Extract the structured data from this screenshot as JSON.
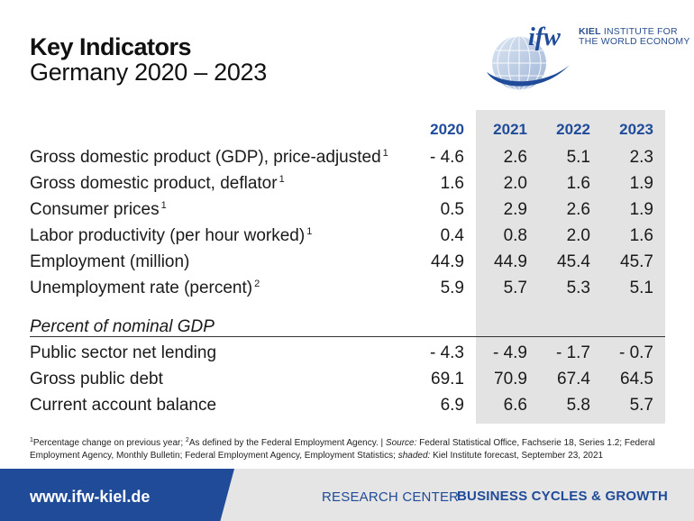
{
  "header": {
    "title": "Key Indicators",
    "subtitle": "Germany 2020 – 2023"
  },
  "logo": {
    "mark": "ifw",
    "line1_bold": "KIEL",
    "line1_rest": "INSTITUTE FOR",
    "line2": "THE WORLD ECONOMY"
  },
  "table": {
    "years": [
      "2020",
      "2021",
      "2022",
      "2023"
    ],
    "rows": [
      {
        "label": "Gross domestic product (GDP), price-adjusted",
        "sup": "1",
        "values": [
          "- 4.6",
          "2.6",
          "5.1",
          "2.3"
        ]
      },
      {
        "label": "Gross domestic product, deflator",
        "sup": "1",
        "values": [
          "1.6",
          "2.0",
          "1.6",
          "1.9"
        ]
      },
      {
        "label": "Consumer prices",
        "sup": "1",
        "values": [
          "0.5",
          "2.9",
          "2.6",
          "1.9"
        ]
      },
      {
        "label": "Labor productivity (per hour worked)",
        "sup": "1",
        "values": [
          "0.4",
          "0.8",
          "2.0",
          "1.6"
        ]
      },
      {
        "label": "Employment (million)",
        "sup": "",
        "values": [
          "44.9",
          "44.9",
          "45.4",
          "45.7"
        ]
      },
      {
        "label": "Unemployment rate (percent)",
        "sup": "2",
        "values": [
          "5.9",
          "5.7",
          "5.3",
          "5.1"
        ]
      }
    ],
    "section_label": "Percent of nominal GDP",
    "rows2": [
      {
        "label": "Public sector net lending",
        "values": [
          "- 4.3",
          "- 4.9",
          "- 1.7",
          "- 0.7"
        ]
      },
      {
        "label": "Gross public debt",
        "values": [
          "69.1",
          "70.9",
          "67.4",
          "64.5"
        ]
      },
      {
        "label": "Current account balance",
        "values": [
          "6.9",
          "6.6",
          "5.8",
          "5.7"
        ]
      }
    ]
  },
  "footnote": {
    "sup1": "1",
    "text1": "Percentage change on previous year;",
    "sup2": "2",
    "text2": "As defined by the Federal Employment Agency. |",
    "source_label": "Source:",
    "source_text": "Federal Statistical Office, Fachserie 18, Series 1.2; Federal Employment Agency, Monthly Bulletin; Federal Employment Agency, Employment Statistics;",
    "shaded_label": "shaded:",
    "shaded_text": "Kiel Institute forecast, September 23, 2021"
  },
  "footer": {
    "url": "www.ifw-kiel.de",
    "research_center": "RESEARCH CENTER",
    "business_cycles": "BUSINESS CYCLES & GROWTH"
  },
  "colors": {
    "accent_blue": "#1f4b99",
    "shade_gray": "#e3e3e3",
    "footer_gray": "#e5e5e5"
  }
}
